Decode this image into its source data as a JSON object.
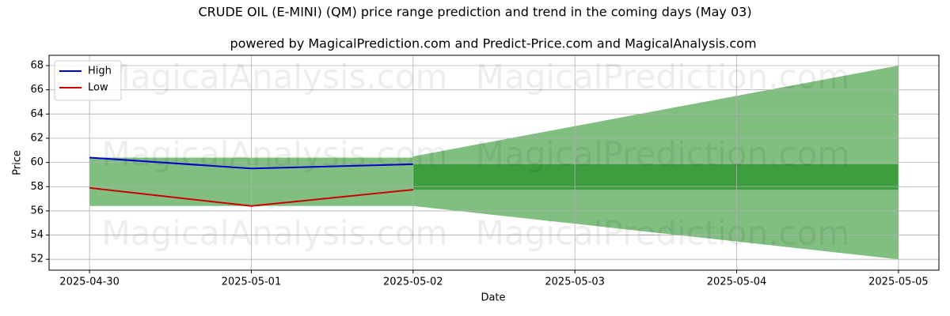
{
  "chart_data": {
    "type": "line",
    "title": "CRUDE OIL (E-MINI) (QM) price range prediction and trend in the coming days (May 03)",
    "subtitle": "powered by MagicalPrediction.com and Predict-Price.com and MagicalAnalysis.com",
    "xlabel": "Date",
    "ylabel": "Price",
    "watermarks": [
      "MagicalAnalysis.com",
      "MagicalPrediction.com"
    ],
    "x": [
      "2025-04-30",
      "2025-05-01",
      "2025-05-02"
    ],
    "series": [
      {
        "name": "High",
        "color": "#0000cc",
        "values": [
          60.4,
          59.5,
          59.85
        ]
      },
      {
        "name": "Low",
        "color": "#cc0000",
        "values": [
          57.9,
          56.4,
          57.75
        ]
      }
    ],
    "areas": [
      {
        "color": "#80bf80",
        "x": [
          "2025-04-30",
          "2025-05-02"
        ],
        "upper": [
          60.4,
          60.4
        ],
        "lower": [
          56.4,
          56.4
        ]
      },
      {
        "color": "#80bf80",
        "x": [
          "2025-05-02",
          "2025-05-05"
        ],
        "upper": [
          60.5,
          68
        ],
        "lower": [
          56.4,
          52
        ]
      },
      {
        "color": "#3d9e3d",
        "x": [
          "2025-05-02",
          "2025-05-05"
        ],
        "upper": [
          59.85,
          59.85
        ],
        "lower": [
          57.75,
          57.75
        ]
      }
    ],
    "xlim": [
      "2025-04-29T18:00",
      "2025-05-05T06:00"
    ],
    "xticks": [
      "2025-04-30",
      "2025-05-01",
      "2025-05-02",
      "2025-05-03",
      "2025-05-04",
      "2025-05-05"
    ],
    "ylim": [
      51.1,
      68.85
    ],
    "yticks": [
      52,
      54,
      56,
      58,
      60,
      62,
      64,
      66,
      68
    ],
    "grid": true,
    "legend": "upper left"
  }
}
